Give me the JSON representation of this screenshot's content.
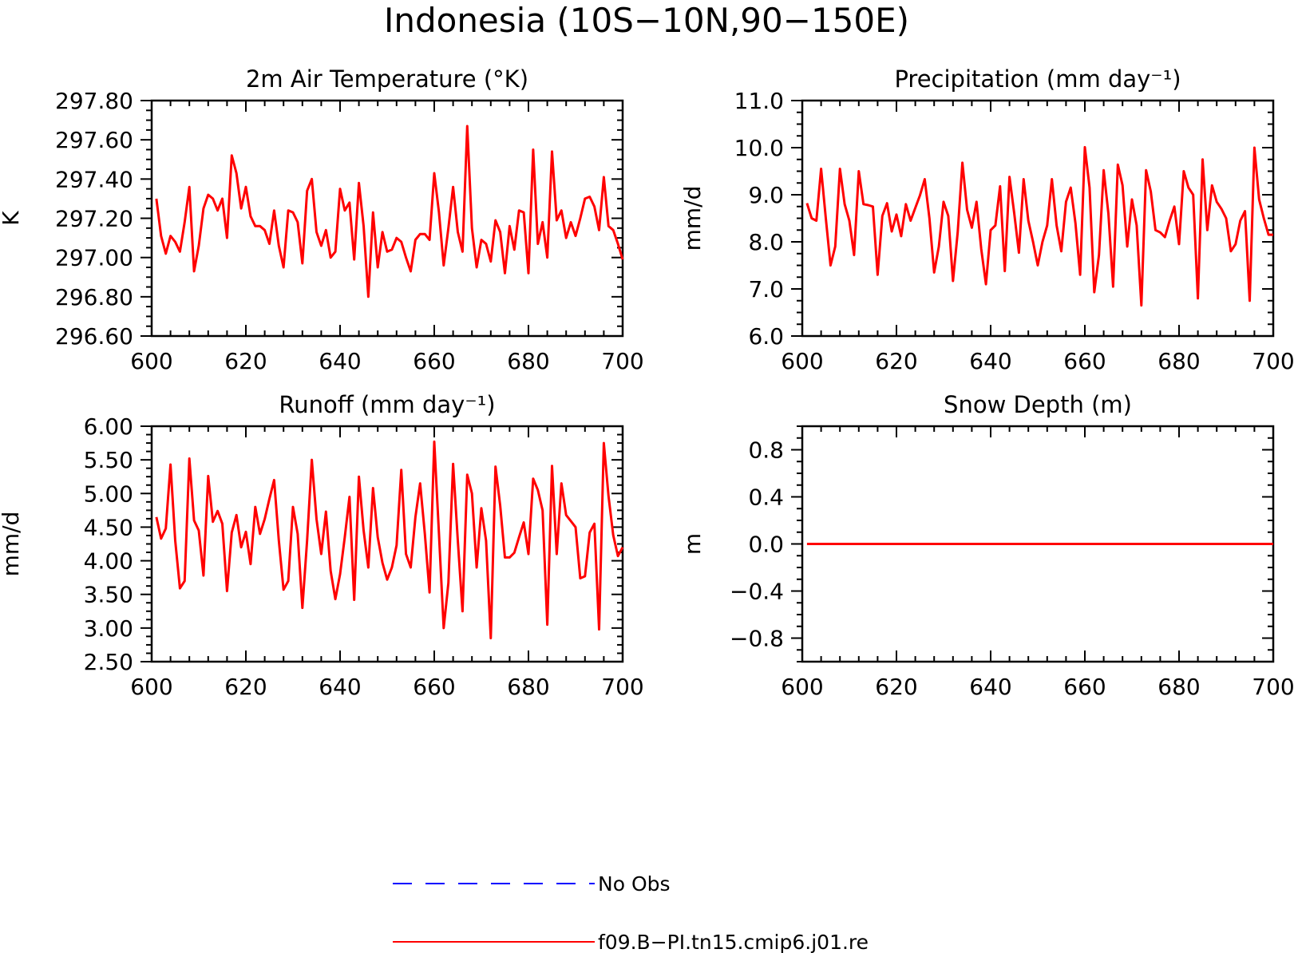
{
  "title": "Indonesia (10S−10N,90−150E)",
  "colors": {
    "model": "#ff0000",
    "obs": "#0000ff"
  },
  "legend": [
    {
      "label": "No Obs",
      "style": "dashed",
      "color": "#0000ff"
    },
    {
      "label": "f09.B−PI.tn15.cmip6.j01.re",
      "style": "solid",
      "color": "#ff0000"
    }
  ],
  "chart_data": [
    {
      "type": "line",
      "title": "2m Air Temperature (°K)",
      "ylabel": "K",
      "xlim": [
        600,
        700
      ],
      "ylim": [
        296.6,
        297.8
      ],
      "xticks": [
        600,
        620,
        640,
        660,
        680,
        700
      ],
      "xtick_labels": [
        "600",
        "620",
        "640",
        "660",
        "680",
        "700"
      ],
      "yticks": [
        296.6,
        296.8,
        297.0,
        297.2,
        297.4,
        297.6,
        297.8
      ],
      "ytick_labels": [
        "296.60",
        "296.80",
        "297.00",
        "297.20",
        "297.40",
        "297.60",
        "297.80"
      ],
      "series": [
        {
          "name": "f09.B−PI.tn15.cmip6.j01.re",
          "color": "#ff0000",
          "x_start": 601,
          "x_step": 1,
          "values": [
            297.3,
            297.11,
            297.02,
            297.11,
            297.08,
            297.03,
            297.18,
            297.36,
            296.93,
            297.06,
            297.25,
            297.32,
            297.3,
            297.24,
            297.3,
            297.1,
            297.52,
            297.43,
            297.25,
            297.36,
            297.21,
            297.16,
            297.16,
            297.14,
            297.07,
            297.24,
            297.06,
            296.95,
            297.24,
            297.23,
            297.18,
            296.97,
            297.34,
            297.4,
            297.13,
            297.06,
            297.14,
            297.0,
            297.03,
            297.35,
            297.24,
            297.28,
            296.99,
            297.38,
            297.16,
            296.8,
            297.23,
            296.95,
            297.13,
            297.03,
            297.04,
            297.1,
            297.08,
            297.0,
            296.93,
            297.09,
            297.12,
            297.12,
            297.09,
            297.43,
            297.23,
            296.96,
            297.15,
            297.36,
            297.13,
            297.03,
            297.67,
            297.15,
            296.95,
            297.09,
            297.07,
            296.98,
            297.19,
            297.13,
            296.92,
            297.16,
            297.04,
            297.24,
            297.23,
            296.92,
            297.55,
            297.07,
            297.18,
            297.0,
            297.54,
            297.19,
            297.24,
            297.1,
            297.18,
            297.11,
            297.2,
            297.3,
            297.31,
            297.26,
            297.14,
            297.41,
            297.16,
            297.14,
            297.07,
            296.99
          ]
        }
      ]
    },
    {
      "type": "line",
      "title": "Precipitation (mm day⁻¹)",
      "ylabel": "mm/d",
      "xlim": [
        600,
        700
      ],
      "ylim": [
        6.0,
        11.0
      ],
      "xticks": [
        600,
        620,
        640,
        660,
        680,
        700
      ],
      "xtick_labels": [
        "600",
        "620",
        "640",
        "660",
        "680",
        "700"
      ],
      "yticks": [
        6.0,
        7.0,
        8.0,
        9.0,
        10.0,
        11.0
      ],
      "ytick_labels": [
        "6.0",
        "7.0",
        "8.0",
        "9.0",
        "10.0",
        "11.0"
      ],
      "series": [
        {
          "name": "f09.B−PI.tn15.cmip6.j01.re",
          "color": "#ff0000",
          "x_start": 601,
          "x_step": 1,
          "values": [
            8.82,
            8.5,
            8.45,
            9.55,
            8.5,
            7.5,
            7.9,
            9.55,
            8.8,
            8.45,
            7.72,
            9.5,
            8.8,
            8.78,
            8.75,
            7.3,
            8.55,
            8.82,
            8.22,
            8.58,
            8.12,
            8.8,
            8.45,
            8.72,
            8.99,
            9.33,
            8.5,
            7.35,
            7.9,
            8.85,
            8.55,
            7.17,
            8.2,
            9.68,
            8.68,
            8.3,
            8.85,
            7.85,
            7.1,
            8.25,
            8.35,
            9.18,
            7.38,
            9.38,
            8.61,
            7.77,
            9.33,
            8.45,
            8.0,
            7.5,
            8.0,
            8.35,
            9.33,
            8.35,
            7.8,
            8.85,
            9.15,
            8.4,
            7.3,
            10.01,
            9.15,
            6.93,
            7.72,
            9.52,
            8.6,
            7.05,
            9.64,
            9.2,
            7.9,
            8.9,
            8.35,
            6.65,
            9.52,
            9.07,
            8.25,
            8.2,
            8.1,
            8.45,
            8.75,
            7.95,
            9.5,
            9.15,
            9.0,
            6.8,
            9.75,
            8.25,
            9.2,
            8.85,
            8.7,
            8.5,
            7.8,
            7.95,
            8.45,
            8.65,
            6.75,
            10.0,
            8.9,
            8.5,
            8.15,
            8.15
          ]
        }
      ]
    },
    {
      "type": "line",
      "title": "Runoff (mm day⁻¹)",
      "ylabel": "mm/d",
      "xlim": [
        600,
        700
      ],
      "ylim": [
        2.5,
        6.0
      ],
      "xticks": [
        600,
        620,
        640,
        660,
        680,
        700
      ],
      "xtick_labels": [
        "600",
        "620",
        "640",
        "660",
        "680",
        "700"
      ],
      "yticks": [
        2.5,
        3.0,
        3.5,
        4.0,
        4.5,
        5.0,
        5.5,
        6.0
      ],
      "ytick_labels": [
        "2.50",
        "3.00",
        "3.50",
        "4.00",
        "4.50",
        "5.00",
        "5.50",
        "6.00"
      ],
      "series": [
        {
          "name": "f09.B−PI.tn15.cmip6.j01.re",
          "color": "#ff0000",
          "x_start": 601,
          "x_step": 1,
          "values": [
            4.65,
            4.33,
            4.48,
            5.43,
            4.3,
            3.59,
            3.7,
            5.52,
            4.6,
            4.45,
            3.78,
            5.26,
            4.58,
            4.74,
            4.55,
            3.55,
            4.42,
            4.68,
            4.2,
            4.43,
            3.95,
            4.8,
            4.4,
            4.62,
            4.92,
            5.2,
            4.3,
            3.57,
            3.7,
            4.8,
            4.4,
            3.3,
            4.3,
            5.5,
            4.62,
            4.1,
            4.73,
            3.85,
            3.43,
            3.8,
            4.35,
            4.95,
            3.42,
            5.25,
            4.45,
            3.9,
            5.08,
            4.35,
            3.97,
            3.72,
            3.9,
            4.23,
            5.35,
            4.1,
            3.9,
            4.65,
            5.15,
            4.4,
            3.53,
            5.77,
            4.4,
            3.0,
            3.67,
            5.44,
            4.3,
            3.25,
            5.28,
            5.0,
            3.9,
            4.78,
            4.3,
            2.85,
            5.4,
            4.82,
            4.05,
            4.05,
            4.12,
            4.35,
            4.57,
            4.1,
            5.22,
            5.05,
            4.75,
            3.05,
            5.41,
            4.1,
            5.15,
            4.68,
            4.59,
            4.5,
            3.74,
            3.77,
            4.42,
            4.55,
            2.98,
            5.75,
            4.96,
            4.38,
            4.07,
            4.2
          ]
        }
      ]
    },
    {
      "type": "line",
      "title": "Snow Depth (m)",
      "ylabel": "m",
      "xlim": [
        600,
        700
      ],
      "ylim": [
        -1.0,
        1.0
      ],
      "xticks": [
        600,
        620,
        640,
        660,
        680,
        700
      ],
      "xtick_labels": [
        "600",
        "620",
        "640",
        "660",
        "680",
        "700"
      ],
      "yticks": [
        -0.8,
        -0.4,
        0.0,
        0.4,
        0.8
      ],
      "ytick_labels": [
        "−0.8",
        "−0.4",
        "0.0",
        "0.4",
        "0.8"
      ],
      "series": [
        {
          "name": "f09.B−PI.tn15.cmip6.j01.re",
          "color": "#ff0000",
          "x": [
            601,
            700
          ],
          "values": [
            0.0,
            0.0
          ]
        }
      ]
    }
  ]
}
